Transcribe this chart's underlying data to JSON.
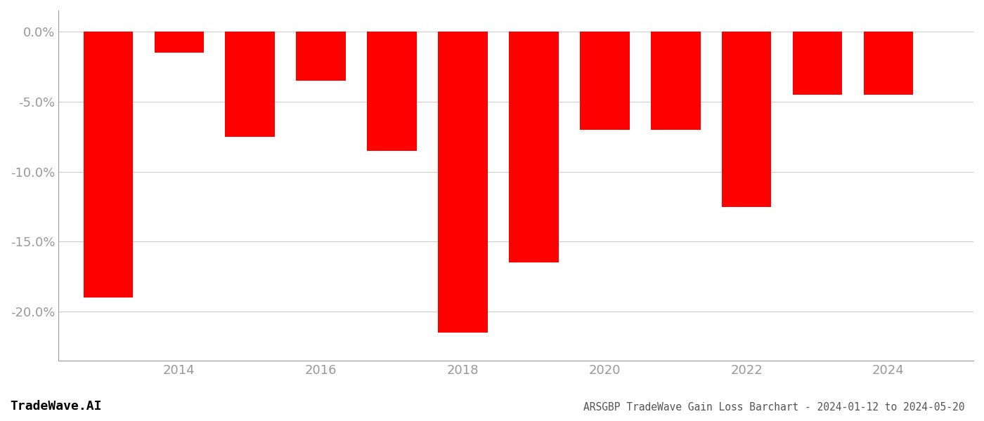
{
  "years": [
    2013,
    2014,
    2015,
    2016,
    2017,
    2018,
    2019,
    2020,
    2021,
    2022,
    2023,
    2024
  ],
  "values": [
    -19.0,
    -1.5,
    -7.5,
    -3.5,
    -8.5,
    -21.5,
    -16.5,
    -7.0,
    -7.0,
    -12.5,
    -4.5,
    -4.5
  ],
  "bar_color": "#ff0000",
  "title": "ARSGBP TradeWave Gain Loss Barchart - 2024-01-12 to 2024-05-20",
  "watermark": "TradeWave.AI",
  "ylim": [
    -23.5,
    1.5
  ],
  "yticks": [
    0.0,
    -5.0,
    -10.0,
    -15.0,
    -20.0
  ],
  "xtick_years": [
    2014,
    2016,
    2018,
    2020,
    2022,
    2024
  ],
  "background_color": "#ffffff",
  "grid_color": "#cccccc",
  "axis_color": "#999999",
  "title_color": "#555555",
  "watermark_color": "#000000",
  "bar_width": 0.7
}
